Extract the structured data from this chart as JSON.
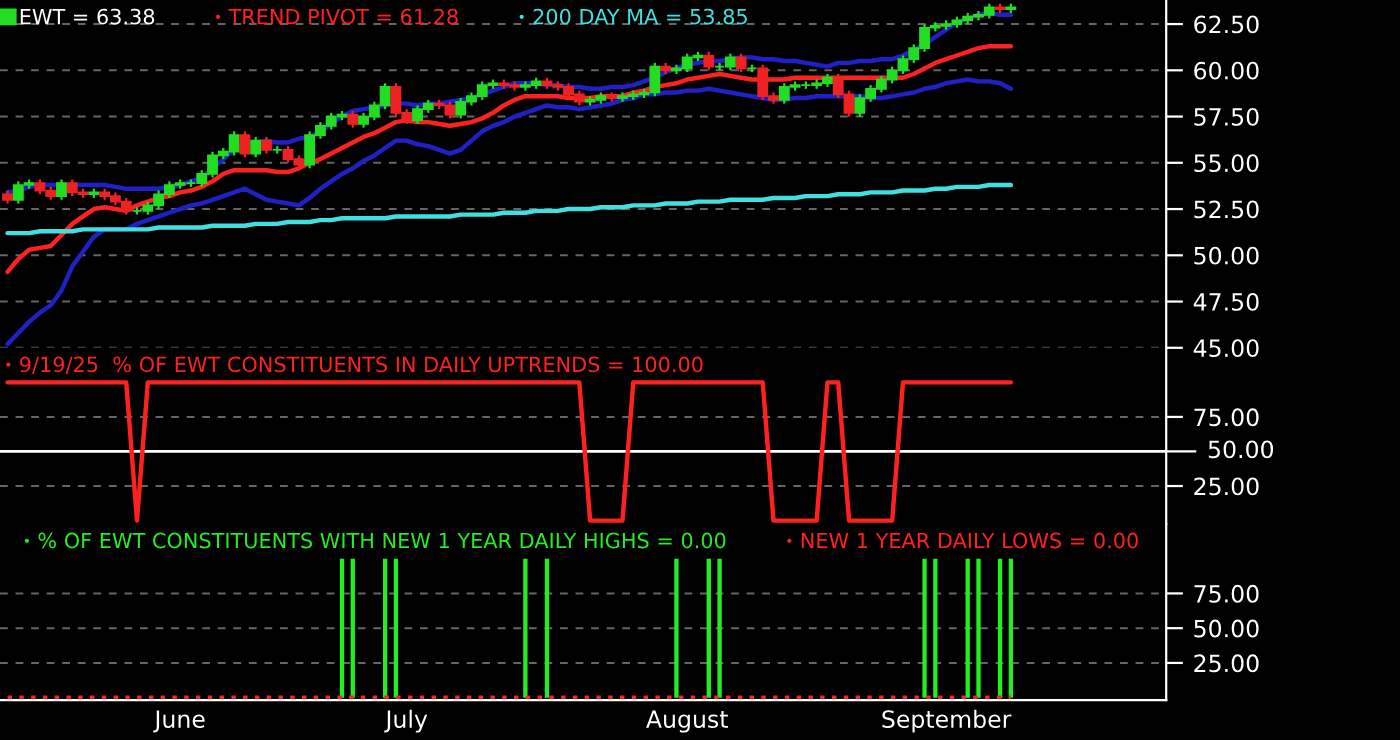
{
  "chart_data": [
    {
      "type": "candlestick",
      "ylim": [
        45,
        63.8
      ],
      "tick_labels": "y",
      "grid": "y",
      "legend": "top left",
      "categories": [
        null,
        null,
        null,
        null,
        null,
        null,
        null,
        null,
        null,
        null,
        null,
        null,
        null,
        null,
        null,
        null,
        null,
        null,
        null,
        null,
        null,
        null,
        null,
        null,
        null,
        null,
        null,
        null,
        null,
        null,
        null,
        null,
        null,
        null,
        null,
        null,
        null,
        null,
        null,
        null,
        null,
        null,
        null,
        null,
        null,
        null,
        null,
        null,
        null,
        null,
        null,
        null,
        null,
        null,
        null,
        null,
        null,
        null,
        null,
        null,
        null,
        null,
        null,
        null,
        null,
        null,
        null,
        null,
        null,
        null,
        null,
        null,
        null,
        null,
        null,
        null,
        null,
        null,
        null,
        null,
        null,
        null,
        null,
        null,
        null,
        null,
        null,
        null,
        null,
        null,
        null,
        null,
        null,
        null
      ],
      "yticks": [
        {
          "value": 45,
          "label": "45.00"
        },
        {
          "value": 47.5,
          "label": "47.50"
        },
        {
          "value": 50,
          "label": "50.00"
        },
        {
          "value": 52.5,
          "label": "52.50"
        },
        {
          "value": 55,
          "label": "55.00"
        },
        {
          "value": 57.5,
          "label": "57.50"
        },
        {
          "value": 60,
          "label": "60.00"
        },
        {
          "value": 62.5,
          "label": "62.50"
        }
      ],
      "series": [
        {
          "type": "line",
          "color": "#2020c8",
          "values": [
            53.4,
            53.5,
            53.7,
            53.8,
            53.8,
            53.8,
            53.8,
            53.8,
            53.8,
            53.8,
            53.7,
            53.6,
            53.6,
            53.6,
            53.6,
            53.7,
            53.8,
            54.0,
            54.2,
            54.7,
            55.2,
            55.7,
            56.0,
            56.1,
            56.2,
            56.1,
            56.1,
            56.3,
            56.4,
            56.7,
            57.1,
            57.5,
            57.8,
            57.9,
            58.0,
            58.1,
            58.2,
            58.2,
            58.1,
            58.2,
            58.2,
            58.3,
            58.4,
            58.5,
            58.7,
            58.9,
            59.1,
            59.3,
            59.3,
            59.3,
            59.2,
            59.2,
            59.1,
            59.1,
            59.0,
            59.0,
            59.1,
            59.1,
            59.2,
            59.4,
            59.6,
            59.9,
            60.1,
            60.3,
            60.4,
            60.5,
            60.5,
            60.6,
            60.7,
            60.7,
            60.6,
            60.6,
            60.5,
            60.5,
            60.4,
            60.3,
            60.2,
            60.4,
            60.4,
            60.5,
            60.5,
            60.6,
            60.6,
            60.8,
            61.1,
            61.4,
            61.8,
            62.2,
            62.6,
            62.8,
            63.0,
            63.1,
            63.0,
            63.0
          ]
        },
        {
          "type": "line",
          "color": "#2020c8",
          "values": [
            45.2,
            45.8,
            46.4,
            46.9,
            47.3,
            48.1,
            49.4,
            50.2,
            51.0,
            51.4,
            51.4,
            51.4,
            51.7,
            51.9,
            52.1,
            52.3,
            52.5,
            52.7,
            52.8,
            53.0,
            53.2,
            53.4,
            53.6,
            53.3,
            53.0,
            52.9,
            52.8,
            52.7,
            53.1,
            53.6,
            54.0,
            54.4,
            54.7,
            55.1,
            55.4,
            55.8,
            56.2,
            56.2,
            56.0,
            55.9,
            55.7,
            55.5,
            55.7,
            56.2,
            56.7,
            57.0,
            57.2,
            57.5,
            57.7,
            57.9,
            58.1,
            58.0,
            58.0,
            57.9,
            58.0,
            58.1,
            58.2,
            58.4,
            58.5,
            58.7,
            58.7,
            58.8,
            58.8,
            58.9,
            58.9,
            59.0,
            58.9,
            58.8,
            58.7,
            58.6,
            58.5,
            58.4,
            58.4,
            58.5,
            58.5,
            58.6,
            58.6,
            58.6,
            58.6,
            58.6,
            58.5,
            58.5,
            58.6,
            58.7,
            58.8,
            59.0,
            59.1,
            59.3,
            59.4,
            59.5,
            59.4,
            59.4,
            59.3,
            59.0
          ]
        },
        {
          "type": "candlestick",
          "name": "EWT = 63.38",
          "ohlc": [
            [
              53.3,
              53.5,
              52.8,
              53.0
            ],
            [
              53.0,
              54.0,
              52.8,
              53.8
            ],
            [
              53.8,
              54.1,
              53.6,
              53.9
            ],
            [
              53.9,
              54.1,
              53.3,
              53.5
            ],
            [
              53.5,
              53.7,
              53.0,
              53.2
            ],
            [
              53.2,
              54.1,
              53.0,
              53.9
            ],
            [
              53.9,
              54.1,
              53.2,
              53.4
            ],
            [
              53.4,
              53.6,
              53.1,
              53.3
            ],
            [
              53.3,
              53.6,
              53.1,
              53.4
            ],
            [
              53.4,
              53.6,
              53.0,
              53.2
            ],
            [
              53.2,
              53.4,
              52.7,
              52.9
            ],
            [
              52.9,
              53.1,
              52.2,
              52.4
            ],
            [
              52.4,
              52.6,
              52.2,
              52.4
            ],
            [
              52.4,
              52.9,
              52.2,
              52.7
            ],
            [
              52.7,
              53.5,
              52.5,
              53.3
            ],
            [
              53.3,
              54.0,
              53.1,
              53.8
            ],
            [
              53.8,
              54.1,
              53.6,
              53.9
            ],
            [
              53.9,
              54.1,
              53.7,
              53.9
            ],
            [
              53.9,
              54.6,
              53.7,
              54.4
            ],
            [
              54.4,
              55.6,
              54.2,
              55.4
            ],
            [
              55.4,
              55.8,
              55.2,
              55.6
            ],
            [
              55.6,
              56.7,
              55.4,
              56.5
            ],
            [
              56.5,
              56.7,
              55.3,
              55.5
            ],
            [
              55.5,
              56.4,
              55.3,
              56.2
            ],
            [
              56.2,
              56.4,
              55.5,
              55.7
            ],
            [
              55.7,
              55.9,
              55.5,
              55.7
            ],
            [
              55.7,
              55.9,
              55.0,
              55.2
            ],
            [
              55.2,
              55.4,
              54.7,
              54.9
            ],
            [
              54.9,
              56.7,
              54.7,
              56.5
            ],
            [
              56.5,
              57.2,
              56.3,
              57.0
            ],
            [
              57.0,
              57.7,
              56.8,
              57.5
            ],
            [
              57.5,
              57.8,
              57.3,
              57.6
            ],
            [
              57.6,
              57.8,
              56.9,
              57.1
            ],
            [
              57.1,
              57.7,
              56.9,
              57.5
            ],
            [
              57.5,
              58.3,
              57.3,
              58.1
            ],
            [
              58.1,
              59.3,
              57.9,
              59.1
            ],
            [
              59.1,
              59.3,
              57.5,
              57.7
            ],
            [
              57.7,
              57.9,
              57.1,
              57.3
            ],
            [
              57.3,
              58.1,
              57.1,
              57.9
            ],
            [
              57.9,
              58.4,
              57.7,
              58.2
            ],
            [
              58.2,
              58.4,
              57.9,
              58.1
            ],
            [
              58.1,
              58.3,
              57.4,
              57.6
            ],
            [
              57.6,
              58.5,
              57.4,
              58.3
            ],
            [
              58.3,
              58.8,
              58.1,
              58.6
            ],
            [
              58.6,
              59.4,
              58.4,
              59.2
            ],
            [
              59.2,
              59.5,
              59.0,
              59.3
            ],
            [
              59.3,
              59.5,
              59.0,
              59.2
            ],
            [
              59.2,
              59.4,
              58.9,
              59.1
            ],
            [
              59.1,
              59.4,
              58.9,
              59.2
            ],
            [
              59.2,
              59.6,
              59.0,
              59.4
            ],
            [
              59.4,
              59.6,
              59.0,
              59.2
            ],
            [
              59.2,
              59.4,
              58.9,
              59.1
            ],
            [
              59.1,
              59.3,
              58.5,
              58.7
            ],
            [
              58.7,
              58.9,
              58.1,
              58.3
            ],
            [
              58.3,
              58.6,
              58.1,
              58.4
            ],
            [
              58.4,
              58.8,
              58.2,
              58.6
            ],
            [
              58.6,
              58.8,
              58.3,
              58.5
            ],
            [
              58.5,
              58.8,
              58.3,
              58.6
            ],
            [
              58.6,
              58.9,
              58.4,
              58.7
            ],
            [
              58.7,
              59.0,
              58.5,
              58.8
            ],
            [
              58.8,
              60.4,
              58.6,
              60.2
            ],
            [
              60.2,
              60.4,
              59.8,
              60.0
            ],
            [
              60.0,
              60.3,
              59.8,
              60.1
            ],
            [
              60.1,
              60.9,
              59.9,
              60.7
            ],
            [
              60.7,
              61.0,
              60.5,
              60.8
            ],
            [
              60.8,
              61.0,
              60.0,
              60.2
            ],
            [
              60.2,
              60.4,
              60.0,
              60.2
            ],
            [
              60.2,
              60.9,
              60.0,
              60.7
            ],
            [
              60.7,
              60.9,
              59.9,
              60.1
            ],
            [
              60.1,
              60.3,
              59.9,
              60.1
            ],
            [
              60.1,
              60.3,
              58.4,
              58.6
            ],
            [
              58.6,
              58.8,
              58.2,
              58.4
            ],
            [
              58.4,
              59.3,
              58.2,
              59.1
            ],
            [
              59.1,
              59.4,
              58.9,
              59.2
            ],
            [
              59.2,
              59.4,
              59.0,
              59.2
            ],
            [
              59.2,
              59.5,
              59.0,
              59.3
            ],
            [
              59.3,
              59.8,
              59.1,
              59.6
            ],
            [
              59.6,
              59.8,
              58.5,
              58.7
            ],
            [
              58.7,
              58.9,
              57.5,
              57.7
            ],
            [
              57.7,
              58.7,
              57.5,
              58.5
            ],
            [
              58.5,
              59.2,
              58.3,
              59.0
            ],
            [
              59.0,
              59.7,
              58.8,
              59.5
            ],
            [
              59.5,
              60.2,
              59.3,
              60.0
            ],
            [
              60.0,
              60.8,
              59.8,
              60.6
            ],
            [
              60.6,
              61.4,
              60.4,
              61.2
            ],
            [
              61.2,
              62.5,
              61.0,
              62.3
            ],
            [
              62.3,
              62.6,
              62.1,
              62.4
            ],
            [
              62.4,
              62.7,
              62.2,
              62.5
            ],
            [
              62.5,
              62.9,
              62.3,
              62.7
            ],
            [
              62.7,
              63.1,
              62.5,
              62.9
            ],
            [
              62.9,
              63.2,
              62.7,
              63.0
            ],
            [
              63.0,
              63.6,
              62.8,
              63.4
            ],
            [
              63.4,
              63.6,
              63.1,
              63.3
            ],
            [
              63.3,
              63.6,
              63.1,
              63.4
            ]
          ],
          "colors": [
            "#ee2222",
            "#22dd22",
            "#22dd22",
            "#ee2222",
            "#ee2222",
            "#22dd22",
            "#ee2222",
            "#ee2222",
            "#22dd22",
            "#ee2222",
            "#ee2222",
            "#ee2222",
            "#22dd22",
            "#22dd22",
            "#22dd22",
            "#22dd22",
            "#22dd22",
            "#22dd22",
            "#22dd22",
            "#22dd22",
            "#22dd22",
            "#22dd22",
            "#ee2222",
            "#22dd22",
            "#ee2222",
            "#22dd22",
            "#ee2222",
            "#ee2222",
            "#22dd22",
            "#22dd22",
            "#22dd22",
            "#22dd22",
            "#ee2222",
            "#22dd22",
            "#22dd22",
            "#22dd22",
            "#ee2222",
            "#ee2222",
            "#22dd22",
            "#22dd22",
            "#ee2222",
            "#ee2222",
            "#22dd22",
            "#22dd22",
            "#22dd22",
            "#22dd22",
            "#ee2222",
            "#ee2222",
            "#22dd22",
            "#22dd22",
            "#ee2222",
            "#ee2222",
            "#ee2222",
            "#ee2222",
            "#22dd22",
            "#22dd22",
            "#ee2222",
            "#22dd22",
            "#22dd22",
            "#22dd22",
            "#22dd22",
            "#ee2222",
            "#22dd22",
            "#22dd22",
            "#22dd22",
            "#ee2222",
            "#22dd22",
            "#22dd22",
            "#ee2222",
            "#22dd22",
            "#ee2222",
            "#ee2222",
            "#22dd22",
            "#22dd22",
            "#22dd22",
            "#22dd22",
            "#22dd22",
            "#ee2222",
            "#ee2222",
            "#22dd22",
            "#22dd22",
            "#22dd22",
            "#22dd22",
            "#22dd22",
            "#22dd22",
            "#22dd22",
            "#22dd22",
            "#22dd22",
            "#22dd22",
            "#22dd22",
            "#22dd22",
            "#22dd22",
            "#ee2222",
            "#22dd22"
          ]
        },
        {
          "type": "line",
          "name": "TREND PIVOT = 61.28",
          "color": "#ff2020",
          "values": [
            49.1,
            49.8,
            50.3,
            50.4,
            50.5,
            51.1,
            51.7,
            52.1,
            52.5,
            52.6,
            52.5,
            52.4,
            52.7,
            52.9,
            53.1,
            53.2,
            53.4,
            53.5,
            53.7,
            54.0,
            54.4,
            54.6,
            54.6,
            54.6,
            54.6,
            54.5,
            54.5,
            54.7,
            55.0,
            55.2,
            55.5,
            55.8,
            56.1,
            56.4,
            56.6,
            56.9,
            57.2,
            57.3,
            57.2,
            57.2,
            57.1,
            57.0,
            57.1,
            57.2,
            57.4,
            57.7,
            58.1,
            58.4,
            58.6,
            58.6,
            58.6,
            58.6,
            58.5,
            58.5,
            58.5,
            58.6,
            58.6,
            58.6,
            58.8,
            58.9,
            59.1,
            59.2,
            59.3,
            59.5,
            59.6,
            59.7,
            59.8,
            59.7,
            59.6,
            59.5,
            59.5,
            59.5,
            59.5,
            59.6,
            59.6,
            59.6,
            59.6,
            59.6,
            59.6,
            59.6,
            59.6,
            59.6,
            59.6,
            59.6,
            59.8,
            60.1,
            60.4,
            60.6,
            60.8,
            61.0,
            61.2,
            61.3,
            61.3,
            61.3
          ]
        },
        {
          "type": "line",
          "name": "200 DAY MA = 53.85",
          "color": "#40e0e0",
          "values": [
            51.2,
            51.2,
            51.2,
            51.3,
            51.3,
            51.3,
            51.3,
            51.4,
            51.4,
            51.4,
            51.4,
            51.4,
            51.4,
            51.4,
            51.5,
            51.5,
            51.5,
            51.5,
            51.5,
            51.6,
            51.6,
            51.6,
            51.6,
            51.7,
            51.7,
            51.7,
            51.8,
            51.8,
            51.8,
            51.9,
            51.9,
            52.0,
            52.0,
            52.0,
            52.0,
            52.0,
            52.1,
            52.1,
            52.1,
            52.1,
            52.1,
            52.1,
            52.2,
            52.2,
            52.2,
            52.2,
            52.3,
            52.3,
            52.3,
            52.4,
            52.4,
            52.4,
            52.5,
            52.5,
            52.5,
            52.6,
            52.6,
            52.6,
            52.7,
            52.7,
            52.7,
            52.8,
            52.8,
            52.8,
            52.9,
            52.9,
            52.9,
            53.0,
            53.0,
            53.0,
            53.0,
            53.1,
            53.1,
            53.1,
            53.2,
            53.2,
            53.2,
            53.3,
            53.3,
            53.3,
            53.4,
            53.4,
            53.4,
            53.5,
            53.5,
            53.5,
            53.6,
            53.6,
            53.7,
            53.7,
            53.7,
            53.8,
            53.8,
            53.8
          ]
        }
      ]
    },
    {
      "type": "line",
      "ylim": [
        -2.4,
        125
      ],
      "tick_labels": "y",
      "grid": "y",
      "legend": "top left",
      "categories": [
        null,
        null,
        null,
        null,
        null,
        null,
        null,
        null,
        null,
        null,
        null,
        null,
        null,
        null,
        null,
        null,
        null,
        null,
        null,
        null,
        null,
        null,
        null,
        null,
        null,
        null,
        null,
        null,
        null,
        null,
        null,
        null,
        null,
        null,
        null,
        null,
        null,
        null,
        null,
        null,
        null,
        null,
        null,
        null,
        null,
        null,
        null,
        null,
        null,
        null,
        null,
        null,
        null,
        null,
        null,
        null,
        null,
        null,
        null,
        null,
        null,
        null,
        null,
        null,
        null,
        null,
        null,
        null,
        null,
        null,
        null,
        null,
        null,
        null,
        null,
        null,
        null,
        null,
        null,
        null,
        null,
        null,
        null,
        null,
        null,
        null,
        null,
        null,
        null,
        null,
        null,
        null,
        null,
        null
      ],
      "yticks": [
        {
          "value": 25,
          "label": "25.00"
        },
        {
          "value": 75,
          "label": "75.00"
        }
      ],
      "ref_lines": [
        {
          "axis": "y",
          "value": 50,
          "label": "50.00",
          "color": "#ffffff"
        }
      ],
      "series": [
        {
          "name": "9/19/25  % OF EWT CONSTITUENTS IN DAILY UPTRENDS = 100.00",
          "color": "#ff2020",
          "values": [
            100,
            100,
            100,
            100,
            100,
            100,
            100,
            100,
            100,
            100,
            100,
            100,
            0,
            100,
            100,
            100,
            100,
            100,
            100,
            100,
            100,
            100,
            100,
            100,
            100,
            100,
            100,
            100,
            100,
            100,
            100,
            100,
            100,
            100,
            100,
            100,
            100,
            100,
            100,
            100,
            100,
            100,
            100,
            100,
            100,
            100,
            100,
            100,
            100,
            100,
            100,
            100,
            100,
            100,
            0,
            0,
            0,
            0,
            100,
            100,
            100,
            100,
            100,
            100,
            100,
            100,
            100,
            100,
            100,
            100,
            100,
            0,
            0,
            0,
            0,
            0,
            100,
            100,
            0,
            0,
            0,
            0,
            0,
            100,
            100,
            100,
            100,
            100,
            100,
            100,
            100,
            100,
            100,
            100
          ]
        }
      ]
    },
    {
      "type": "bar",
      "ylim": [
        -1.7,
        125
      ],
      "grid": "y",
      "legend": "top",
      "categories": [
        null,
        null,
        null,
        null,
        null,
        null,
        null,
        null,
        null,
        null,
        null,
        null,
        null,
        null,
        null,
        null,
        "June",
        null,
        null,
        null,
        null,
        null,
        null,
        null,
        null,
        null,
        null,
        null,
        null,
        null,
        null,
        null,
        null,
        null,
        null,
        null,
        null,
        "July",
        null,
        null,
        null,
        null,
        null,
        null,
        null,
        null,
        null,
        null,
        null,
        null,
        null,
        null,
        null,
        null,
        null,
        null,
        null,
        null,
        null,
        null,
        null,
        null,
        null,
        "August",
        null,
        null,
        null,
        null,
        null,
        null,
        null,
        null,
        null,
        null,
        null,
        null,
        null,
        null,
        null,
        null,
        null,
        null,
        null,
        null,
        null,
        null,
        null,
        "September",
        null,
        null,
        null,
        null,
        null,
        null
      ],
      "yticks": [
        {
          "value": 25,
          "label": "25.00"
        },
        {
          "value": 50,
          "label": "50.00"
        },
        {
          "value": 75,
          "label": "75.00"
        }
      ],
      "series": [
        {
          "name": "% OF EWT CONSTITUENTS WITH NEW 1 YEAR DAILY HIGHS = 0.00",
          "color": "#22ee22",
          "values": [
            0,
            0,
            0,
            0,
            0,
            0,
            0,
            0,
            0,
            0,
            0,
            0,
            0,
            0,
            0,
            0,
            0,
            0,
            0,
            0,
            0,
            0,
            0,
            0,
            0,
            0,
            0,
            0,
            0,
            0,
            0,
            100,
            100,
            0,
            0,
            100,
            100,
            0,
            0,
            0,
            0,
            0,
            0,
            0,
            0,
            0,
            0,
            0,
            100,
            0,
            100,
            0,
            0,
            0,
            0,
            0,
            0,
            0,
            0,
            0,
            0,
            0,
            100,
            0,
            0,
            100,
            100,
            0,
            0,
            0,
            0,
            0,
            0,
            0,
            0,
            0,
            0,
            0,
            0,
            0,
            0,
            0,
            0,
            0,
            0,
            100,
            100,
            0,
            0,
            100,
            100,
            0,
            100,
            100
          ]
        },
        {
          "type": "line",
          "name": "NEW 1 YEAR DAILY LOWS = 0.00",
          "color": "#ff2020",
          "line_style": "dotted",
          "values": [
            0,
            0,
            0,
            0,
            0,
            0,
            0,
            0,
            0,
            0,
            0,
            0,
            0,
            0,
            0,
            0,
            0,
            0,
            0,
            0,
            0,
            0,
            0,
            0,
            0,
            0,
            0,
            0,
            0,
            0,
            0,
            0,
            0,
            0,
            0,
            0,
            0,
            0,
            0,
            0,
            0,
            0,
            0,
            0,
            0,
            0,
            0,
            0,
            0,
            0,
            0,
            0,
            0,
            0,
            0,
            0,
            0,
            0,
            0,
            0,
            0,
            0,
            0,
            0,
            0,
            0,
            0,
            0,
            0,
            0,
            0,
            0,
            0,
            0,
            0,
            0,
            0,
            0,
            0,
            0,
            0,
            0,
            0,
            0,
            0,
            0,
            0,
            0,
            0,
            0,
            0,
            0,
            0,
            0
          ]
        }
      ]
    }
  ]
}
